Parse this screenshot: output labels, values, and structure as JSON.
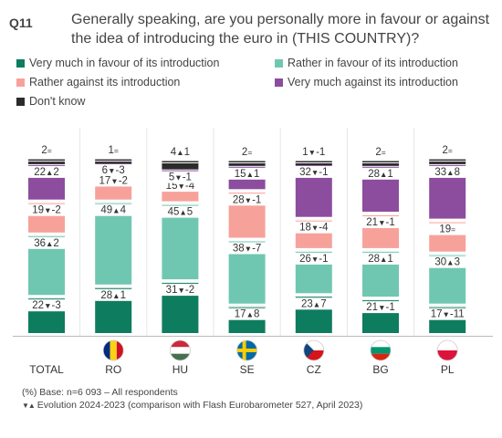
{
  "question": {
    "number": "Q11",
    "text": "Generally speaking, are you personally more in favour or against the idea of introducing the euro in (THIS COUNTRY)?"
  },
  "legend": [
    {
      "key": "very_favour",
      "label": "Very much in favour of its introduction",
      "color": "#0e7c5f"
    },
    {
      "key": "rather_favour",
      "label": "Rather in favour of its introduction",
      "color": "#70c7b1"
    },
    {
      "key": "rather_against",
      "label": "Rather against its introduction",
      "color": "#f6a29b"
    },
    {
      "key": "very_against",
      "label": "Very much against its introduction",
      "color": "#8c4d9e"
    },
    {
      "key": "dont_know",
      "label": "Don't know",
      "color": "#2b2b2b"
    }
  ],
  "chart_data": {
    "type": "bar",
    "stacked": true,
    "orientation": "vertical",
    "ylim": [
      0,
      100
    ],
    "categories": [
      "TOTAL",
      "RO",
      "HU",
      "SE",
      "CZ",
      "BG",
      "PL"
    ],
    "flags": [
      "",
      "Romania flag",
      "Hungary flag",
      "Sweden flag",
      "Czechia flag",
      "Bulgaria flag",
      "Poland flag"
    ],
    "series": [
      {
        "name": "Very much in favour of its introduction",
        "color": "#0e7c5f",
        "values": [
          22,
          28,
          31,
          17,
          23,
          21,
          17
        ],
        "labels": [
          "22▼-3",
          "28▲1",
          "31▼-2",
          "17▲8",
          "23▲7",
          "21▼-1",
          "17▼-11"
        ]
      },
      {
        "name": "Rather in favour of its introduction",
        "color": "#70c7b1",
        "values": [
          36,
          49,
          45,
          38,
          26,
          28,
          30
        ],
        "labels": [
          "36▲2",
          "49▲4",
          "45▲5",
          "38▼-7",
          "26▼-1",
          "28▲1",
          "30▲3"
        ]
      },
      {
        "name": "Rather against its introduction",
        "color": "#f6a29b",
        "values": [
          19,
          17,
          15,
          28,
          18,
          21,
          19
        ],
        "labels": [
          "19▼-2",
          "17▼-2",
          "15▼-4",
          "28▼-1",
          "18▼-4",
          "21▼-1",
          "19="
        ]
      },
      {
        "name": "Very much against its introduction",
        "color": "#8c4d9e",
        "values": [
          22,
          6,
          5,
          15,
          32,
          28,
          33
        ],
        "labels": [
          "22▲2",
          "6▼-3",
          "5▼-1",
          "15▲1",
          "32▼-1",
          "28▲1",
          "33▲8"
        ]
      },
      {
        "name": "Don't know",
        "color": "#2b2b2b",
        "values": [
          2,
          1,
          4,
          2,
          1,
          2,
          2
        ],
        "labels": [
          "2=",
          "1=",
          "4▲1",
          "2=",
          "1▼-1",
          "2=",
          "2="
        ]
      }
    ]
  },
  "footnotes": {
    "base": "(%) Base: n=6 093  – All respondents",
    "evolution_symbols": "▼▲",
    "evolution": "Evolution 2024-2023 (comparison with Flash Eurobarometer 527, April 2023)"
  }
}
